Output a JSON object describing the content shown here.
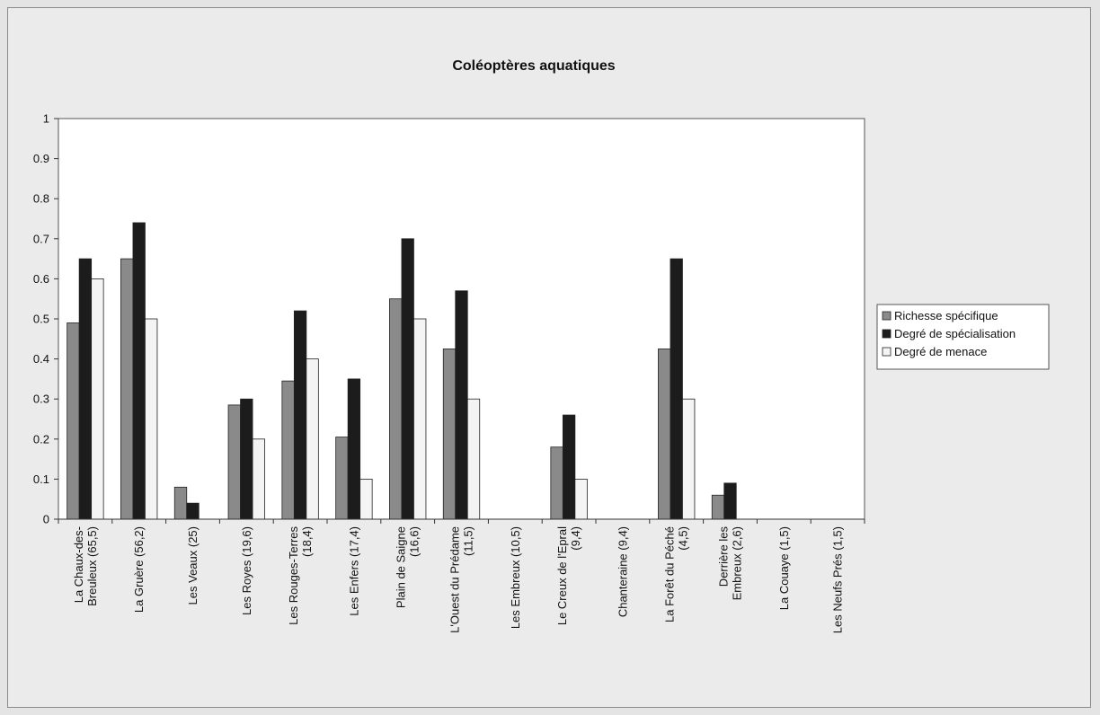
{
  "chart_data": {
    "type": "bar",
    "title": "Coléoptères aquatiques",
    "xlabel": "",
    "ylabel": "",
    "ylim": [
      0,
      1
    ],
    "yticks": [
      "0",
      "0.1",
      "0.2",
      "0.3",
      "0.4",
      "0.5",
      "0.6",
      "0.7",
      "0.8",
      "0.9",
      "1"
    ],
    "grid": false,
    "legend_position": "right",
    "categories": [
      [
        "La Chaux-des-",
        "Breuleux (65,5)"
      ],
      [
        "La Gruère (56,2)"
      ],
      [
        "Les Veaux (25)"
      ],
      [
        "Les Royes (19,6)"
      ],
      [
        "Les Rouges-Terres",
        "(18,4)"
      ],
      [
        "Les Enfers (17,4)"
      ],
      [
        "Plain de Saigne",
        "(16,6)"
      ],
      [
        "L'Ouest du Prédame",
        "(11,5)"
      ],
      [
        "Les Embreux (10,5)"
      ],
      [
        "Le Creux de l'Epral",
        "(9,4)"
      ],
      [
        "Chanteraine (9,4)"
      ],
      [
        "La Forêt du Péché",
        "(4,5)"
      ],
      [
        "Derrière les",
        "Embreux (2,6)"
      ],
      [
        "La Couaye (1,5)"
      ],
      [
        "Les Neufs Prés (1,5)"
      ]
    ],
    "series": [
      {
        "name": "Richesse spécifique",
        "color": "#8a8a8a",
        "values": [
          0.49,
          0.65,
          0.08,
          0.285,
          0.345,
          0.205,
          0.55,
          0.425,
          0,
          0.18,
          0,
          0.425,
          0.06,
          0,
          0
        ]
      },
      {
        "name": "Degré de spécialisation",
        "color": "#1c1c1c",
        "values": [
          0.65,
          0.74,
          0.04,
          0.3,
          0.52,
          0.35,
          0.7,
          0.57,
          0,
          0.26,
          0,
          0.65,
          0.09,
          0,
          0
        ]
      },
      {
        "name": "Degré de menace",
        "color": "#f4f4f4",
        "values": [
          0.6,
          0.5,
          0,
          0.2,
          0.4,
          0.1,
          0.5,
          0.3,
          0,
          0.1,
          0,
          0.3,
          0,
          0,
          0
        ]
      }
    ]
  }
}
